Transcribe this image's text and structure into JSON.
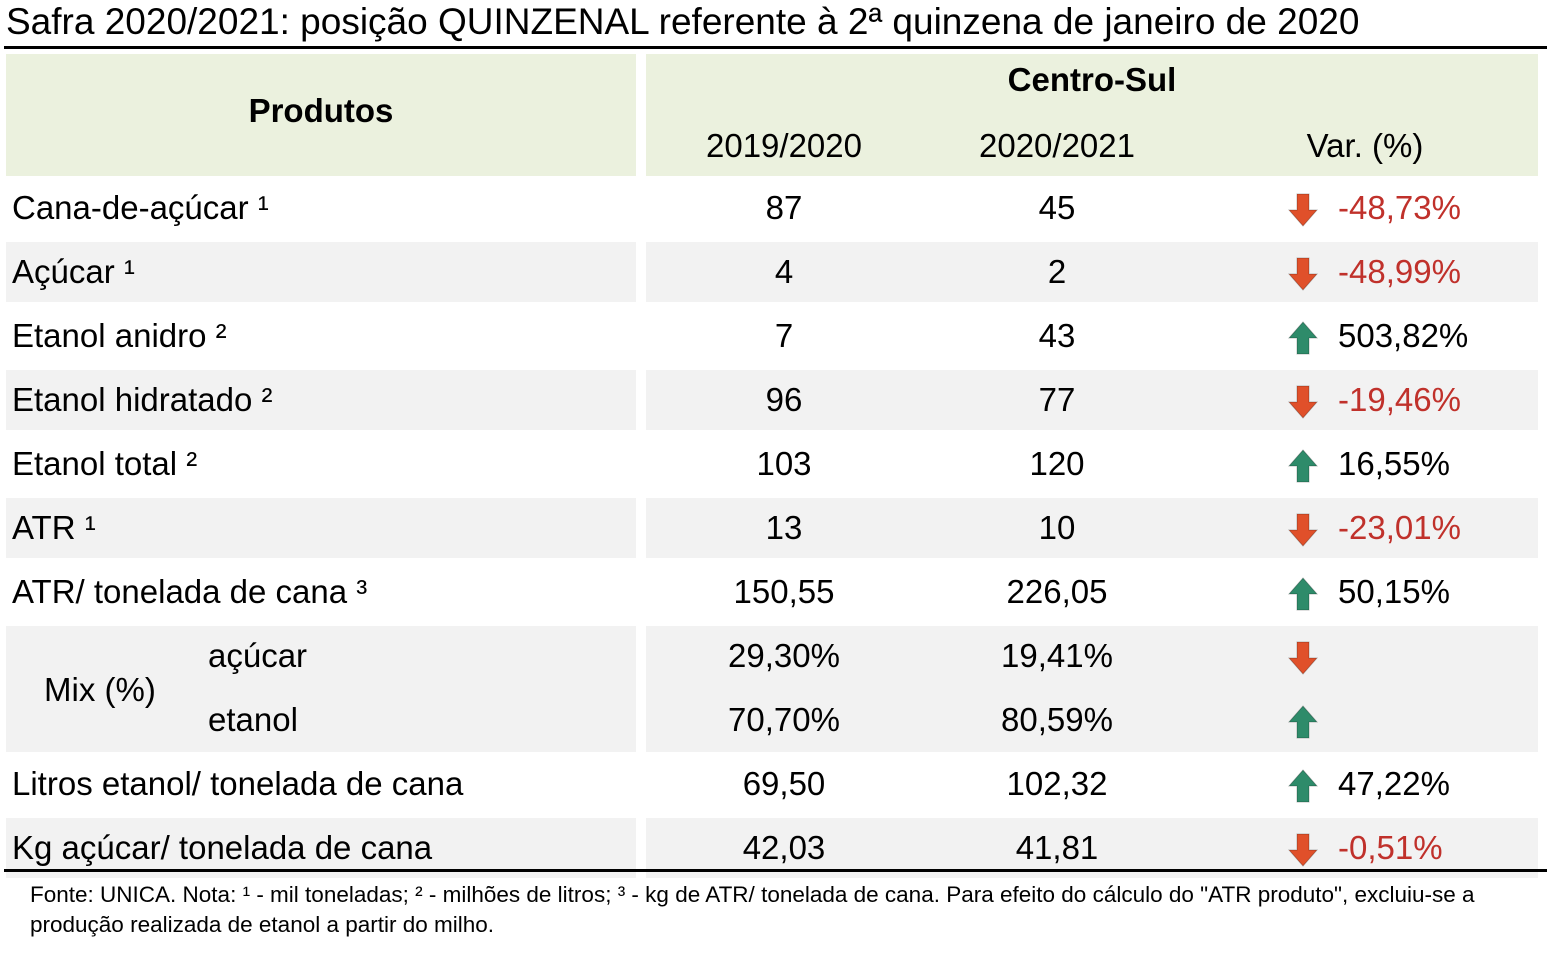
{
  "title": "Safra 2020/2021: posição QUINZENAL referente à 2ª quinzena de janeiro de 2020",
  "header": {
    "produtos": "Produtos",
    "region": "Centro-Sul",
    "col1": "2019/2020",
    "col2": "2020/2021",
    "col3": "Var. (%)"
  },
  "rows": [
    {
      "label": "Cana-de-açúcar ¹",
      "v1": "87",
      "v2": "45",
      "var": "-48,73%",
      "dir": "down"
    },
    {
      "label": "Açúcar ¹",
      "v1": "4",
      "v2": "2",
      "var": "-48,99%",
      "dir": "down"
    },
    {
      "label": "Etanol anidro ²",
      "v1": "7",
      "v2": "43",
      "var": "503,82%",
      "dir": "up"
    },
    {
      "label": "Etanol hidratado ²",
      "v1": "96",
      "v2": "77",
      "var": "-19,46%",
      "dir": "down"
    },
    {
      "label": "Etanol total ²",
      "v1": "103",
      "v2": "120",
      "var": "16,55%",
      "dir": "up"
    },
    {
      "label": "ATR ¹",
      "v1": "13",
      "v2": "10",
      "var": "-23,01%",
      "dir": "down"
    },
    {
      "label": "ATR/ tonelada de cana ³",
      "v1": "150,55",
      "v2": "226,05",
      "var": "50,15%",
      "dir": "up"
    }
  ],
  "mix": {
    "label": "Mix (%)",
    "acucar": {
      "label": "açúcar",
      "v1": "29,30%",
      "v2": "19,41%",
      "dir": "down"
    },
    "etanol": {
      "label": "etanol",
      "v1": "70,70%",
      "v2": "80,59%",
      "dir": "up"
    }
  },
  "rows_after": [
    {
      "label": "Litros etanol/ tonelada de cana",
      "v1": "69,50",
      "v2": "102,32",
      "var": "47,22%",
      "dir": "up"
    },
    {
      "label": "Kg açúcar/ tonelada de cana",
      "v1": "42,03",
      "v2": "41,81",
      "var": "-0,51%",
      "dir": "down"
    }
  ],
  "footer": "Fonte: UNICA. Nota: ¹ - mil toneladas; ² - milhões de litros; ³ - kg de ATR/ tonelada de cana. Para efeito do cálculo do \"ATR produto\", excluiu-se a produção realizada de etanol a partir do milho.",
  "colors": {
    "down": "#e0502a",
    "up": "#2e8b6a",
    "neg_text": "#c0312b",
    "header_bg": "#ebf1de",
    "stripe_bg": "#f2f2f2"
  }
}
